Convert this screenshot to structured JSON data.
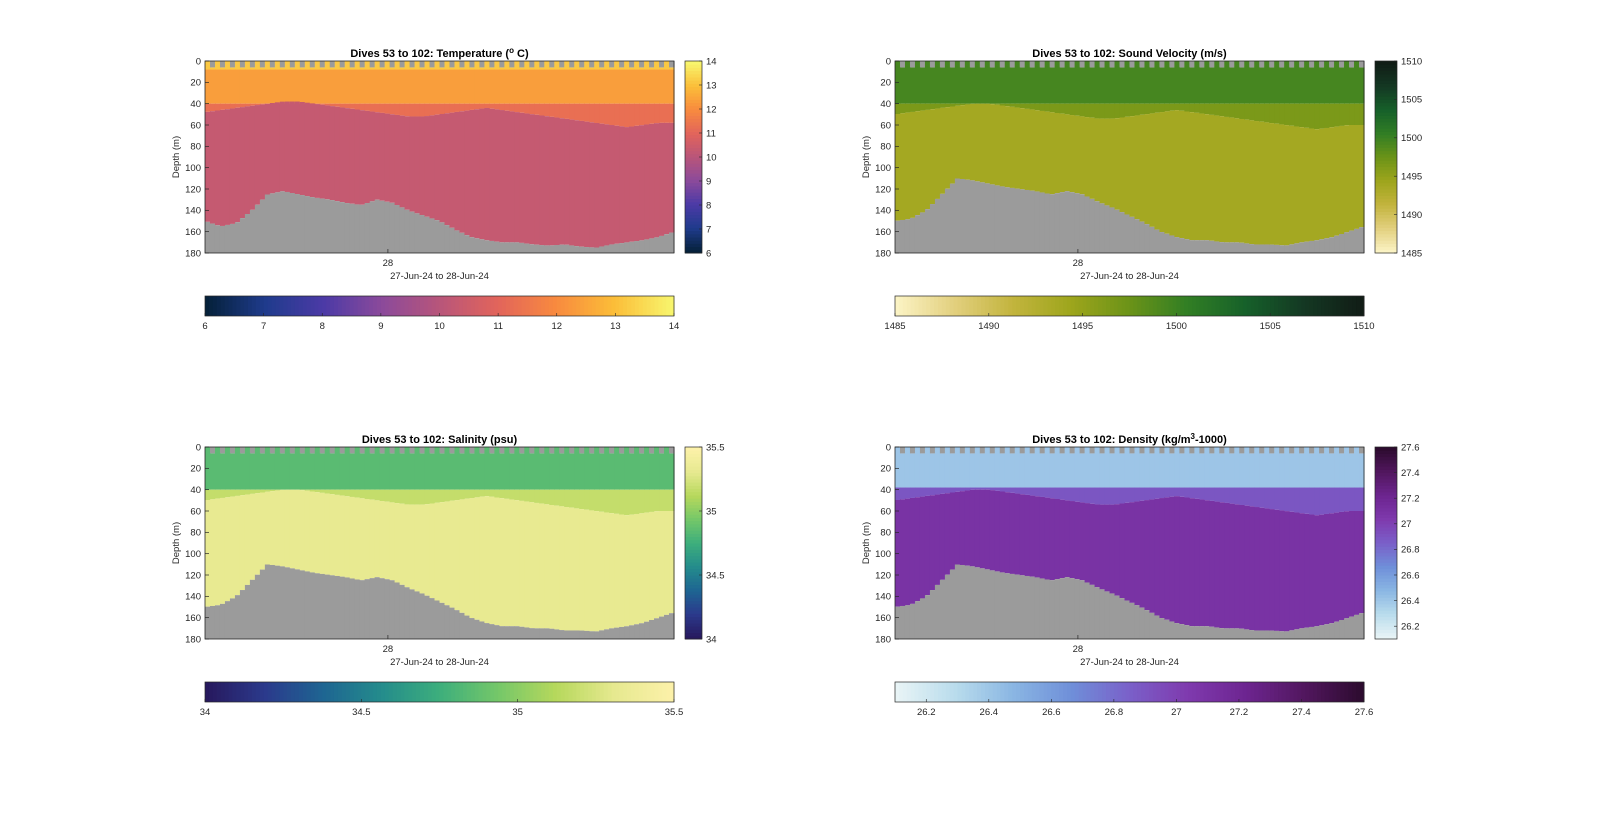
{
  "chart_data": [
    {
      "type": "heatmap",
      "title": "Dives 53 to 102: Temperature (",
      "title_sup": "o",
      "title_suffix": " C)",
      "xlabel": "27-Jun-24 to 28-Jun-24",
      "ylabel": "Depth (m)",
      "x_tick_labels": [
        "28"
      ],
      "y_ticks": [
        0,
        20,
        40,
        60,
        80,
        100,
        120,
        140,
        160,
        180
      ],
      "ylim": [
        0,
        180
      ],
      "clim": [
        6,
        14
      ],
      "colorbar_ticks": [
        6,
        7,
        8,
        9,
        10,
        11,
        12,
        13,
        14
      ],
      "colormap": [
        "#05213a",
        "#1f3b8c",
        "#4b3aa6",
        "#8b4a9b",
        "#b8557a",
        "#e2645b",
        "#f88a3f",
        "#fbbd38",
        "#f8f56d"
      ],
      "layers": [
        {
          "depth_to": 8,
          "value": 13.2
        },
        {
          "depth_to": 40,
          "value": 12.4
        },
        {
          "depth_to": 55,
          "value": 11.3
        },
        {
          "depth_to": 180,
          "value": 10.3
        }
      ],
      "thermocline_depth": [
        48,
        46,
        44,
        42,
        40,
        38,
        38,
        40,
        42,
        44,
        46,
        48,
        50,
        52,
        52,
        50,
        48,
        46,
        44,
        46,
        48,
        50,
        52,
        54,
        56,
        58,
        60,
        62,
        60,
        58,
        58
      ],
      "seafloor_depth": [
        150,
        155,
        152,
        140,
        125,
        122,
        125,
        128,
        130,
        133,
        135,
        130,
        133,
        140,
        145,
        150,
        158,
        165,
        168,
        170,
        170,
        172,
        173,
        172,
        174,
        175,
        172,
        170,
        168,
        165,
        160
      ]
    },
    {
      "type": "heatmap",
      "title": "Dives 53 to 102: Sound Velocity (m/s)",
      "xlabel": "27-Jun-24 to 28-Jun-24",
      "ylabel": "Depth (m)",
      "x_tick_labels": [
        "28"
      ],
      "y_ticks": [
        0,
        20,
        40,
        60,
        80,
        100,
        120,
        140,
        160,
        180
      ],
      "ylim": [
        0,
        180
      ],
      "clim": [
        1485,
        1510
      ],
      "colorbar_ticks": [
        1485,
        1490,
        1495,
        1500,
        1505,
        1510
      ],
      "colormap": [
        "#fbf3c4",
        "#e2cf7d",
        "#c2b43d",
        "#9da51c",
        "#6b9318",
        "#317e24",
        "#16602a",
        "#143823",
        "#111d16"
      ],
      "layers": [
        {
          "depth_to": 40,
          "value": 1499.5
        },
        {
          "depth_to": 58,
          "value": 1496.5
        },
        {
          "depth_to": 180,
          "value": 1493.8
        }
      ],
      "thermocline_depth": [
        50,
        48,
        46,
        44,
        42,
        40,
        40,
        42,
        44,
        46,
        48,
        50,
        52,
        54,
        54,
        52,
        50,
        48,
        46,
        48,
        50,
        52,
        54,
        56,
        58,
        60,
        62,
        64,
        62,
        60,
        60
      ],
      "seafloor_depth": [
        150,
        148,
        140,
        125,
        110,
        112,
        115,
        118,
        120,
        122,
        125,
        122,
        125,
        132,
        138,
        145,
        152,
        160,
        165,
        168,
        168,
        170,
        170,
        172,
        172,
        173,
        170,
        168,
        165,
        160,
        155
      ]
    },
    {
      "type": "heatmap",
      "title": "Dives 53 to 102: Salinity (psu)",
      "xlabel": "27-Jun-24 to 28-Jun-24",
      "ylabel": "Depth (m)",
      "x_tick_labels": [
        "28"
      ],
      "y_ticks": [
        0,
        20,
        40,
        60,
        80,
        100,
        120,
        140,
        160,
        180
      ],
      "ylim": [
        0,
        180
      ],
      "clim": [
        34,
        35.5
      ],
      "colorbar_ticks": [
        34,
        34.5,
        35,
        35.5
      ],
      "colorbar_ticks_right": [
        34,
        34.5,
        35,
        35.5
      ],
      "colormap": [
        "#27195e",
        "#2b3a8c",
        "#1e6592",
        "#248c8c",
        "#3dae7c",
        "#74c769",
        "#b6d85c",
        "#e6e98f",
        "#fcf1a9"
      ],
      "layers": [
        {
          "depth_to": 40,
          "value": 34.85
        },
        {
          "depth_to": 58,
          "value": 35.18
        },
        {
          "depth_to": 180,
          "value": 35.33
        }
      ],
      "thermocline_depth": [
        50,
        48,
        46,
        44,
        42,
        40,
        40,
        42,
        44,
        46,
        48,
        50,
        52,
        54,
        54,
        52,
        50,
        48,
        46,
        48,
        50,
        52,
        54,
        56,
        58,
        60,
        62,
        64,
        62,
        60,
        60
      ],
      "seafloor_depth": [
        150,
        148,
        140,
        125,
        110,
        112,
        115,
        118,
        120,
        122,
        125,
        122,
        125,
        132,
        138,
        145,
        152,
        160,
        165,
        168,
        168,
        170,
        170,
        172,
        172,
        173,
        170,
        168,
        165,
        160,
        155
      ]
    },
    {
      "type": "heatmap",
      "title": "Dives 53 to 102: Density (kg/m",
      "title_sup": "3",
      "title_suffix": "-1000)",
      "xlabel": "27-Jun-24 to 28-Jun-24",
      "ylabel": "Depth (m)",
      "x_tick_labels": [
        "28"
      ],
      "y_ticks": [
        0,
        20,
        40,
        60,
        80,
        100,
        120,
        140,
        160,
        180
      ],
      "ylim": [
        0,
        180
      ],
      "clim": [
        26.1,
        27.6
      ],
      "colorbar_ticks": [
        26.2,
        26.4,
        26.6,
        26.8,
        27,
        27.2,
        27.4,
        27.6
      ],
      "colormap": [
        "#e8f4f6",
        "#b9dcec",
        "#8ab6e3",
        "#6f8fd9",
        "#7a60c9",
        "#7f3aae",
        "#6d2590",
        "#52175f",
        "#2d0b2f"
      ],
      "layers": [
        {
          "depth_to": 38,
          "value": 26.4
        },
        {
          "depth_to": 55,
          "value": 26.9
        },
        {
          "depth_to": 180,
          "value": 27.1
        }
      ],
      "thermocline_depth": [
        50,
        48,
        46,
        44,
        42,
        40,
        40,
        42,
        44,
        46,
        48,
        50,
        52,
        54,
        54,
        52,
        50,
        48,
        46,
        48,
        50,
        52,
        54,
        56,
        58,
        60,
        62,
        64,
        62,
        60,
        60
      ],
      "seafloor_depth": [
        150,
        148,
        140,
        125,
        110,
        112,
        115,
        118,
        120,
        122,
        125,
        122,
        125,
        132,
        138,
        145,
        152,
        160,
        165,
        168,
        168,
        170,
        170,
        172,
        172,
        173,
        170,
        168,
        165,
        160,
        155
      ]
    }
  ]
}
